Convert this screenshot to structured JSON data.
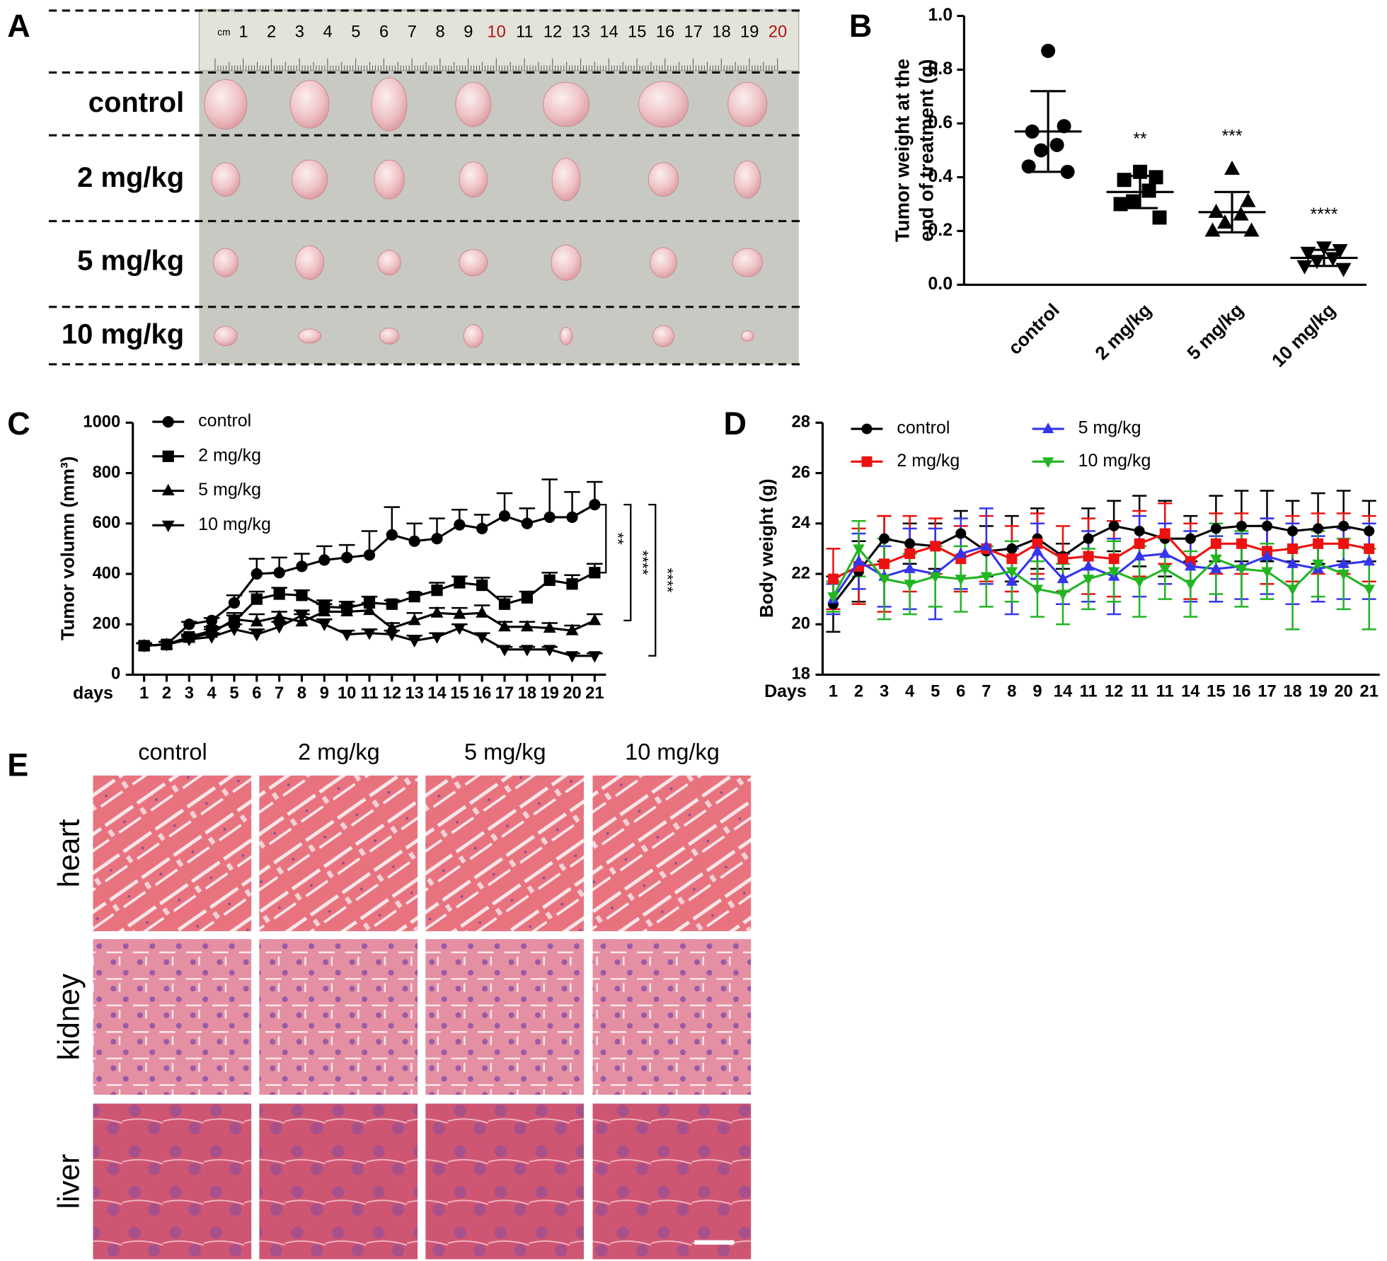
{
  "panel_labels": [
    "A",
    "B",
    "C",
    "D",
    "E"
  ],
  "panel_a": {
    "ruler_unit": "cm",
    "ruler_marks": [
      1,
      2,
      3,
      4,
      5,
      6,
      7,
      8,
      9,
      10,
      11,
      12,
      13,
      14,
      15,
      16,
      17,
      18,
      19,
      20
    ],
    "rows": [
      "control",
      "2 mg/kg",
      "5 mg/kg",
      "10 mg/kg"
    ]
  },
  "chart_data": [
    {
      "type": "dot",
      "ylabel": [
        "Tumor weight at the",
        "end of treatment (g)"
      ],
      "categories": [
        "control",
        "2 mg/kg",
        "5 mg/kg",
        "10 mg/kg"
      ],
      "markers": [
        "circle",
        "square",
        "triangle",
        "triangle-down"
      ],
      "color": "#000000",
      "points": [
        [
          0.87,
          0.59,
          0.57,
          0.52,
          0.5,
          0.44,
          0.42
        ],
        [
          0.42,
          0.4,
          0.39,
          0.35,
          0.31,
          0.3,
          0.25
        ],
        [
          0.43,
          0.31,
          0.27,
          0.26,
          0.23,
          0.2,
          0.2
        ],
        [
          0.14,
          0.13,
          0.12,
          0.1,
          0.09,
          0.07,
          0.06
        ]
      ],
      "mean": [
        0.57,
        0.345,
        0.27,
        0.1
      ],
      "sd": [
        0.15,
        0.06,
        0.075,
        0.03
      ],
      "annotations": [
        null,
        "**",
        "***",
        "****"
      ],
      "ylim": [
        0,
        1
      ],
      "yticks": [
        {
          "value": 0,
          "label": "0.0"
        },
        0.2,
        0.4,
        0.6,
        0.8,
        {
          "value": 1,
          "label": "1.0"
        }
      ]
    },
    {
      "type": "line",
      "xlabel": "days",
      "ylabel": "Tumor volumn (mm³)",
      "error_direction": "up",
      "legend": "upper left",
      "x": [
        1,
        2,
        3,
        4,
        5,
        6,
        7,
        8,
        9,
        10,
        11,
        12,
        13,
        14,
        15,
        16,
        17,
        18,
        19,
        20,
        21
      ],
      "xlim": [
        0.5,
        21.5
      ],
      "xticks": [
        1,
        2,
        3,
        4,
        5,
        6,
        7,
        8,
        9,
        10,
        11,
        12,
        13,
        14,
        15,
        16,
        17,
        18,
        19,
        20,
        21
      ],
      "ylim": [
        0,
        1000
      ],
      "yticks": [
        0,
        200,
        400,
        600,
        800,
        1000
      ],
      "series": [
        {
          "name": "control",
          "color": "#000000",
          "marker": "circle",
          "values": [
            115,
            120,
            200,
            215,
            285,
            400,
            405,
            430,
            455,
            465,
            475,
            555,
            530,
            540,
            595,
            580,
            630,
            600,
            625,
            625,
            675
          ],
          "errors": [
            10,
            10,
            10,
            10,
            30,
            60,
            60,
            50,
            55,
            50,
            95,
            110,
            70,
            80,
            60,
            55,
            90,
            60,
            150,
            100,
            90
          ]
        },
        {
          "name": "2 mg/kg",
          "color": "#000000",
          "marker": "square",
          "values": [
            115,
            120,
            150,
            175,
            210,
            300,
            320,
            315,
            270,
            265,
            285,
            280,
            310,
            335,
            365,
            355,
            280,
            305,
            375,
            360,
            405
          ],
          "errors": [
            10,
            10,
            10,
            15,
            25,
            30,
            25,
            20,
            25,
            25,
            25,
            15,
            15,
            30,
            25,
            30,
            30,
            25,
            30,
            35,
            35
          ]
        },
        {
          "name": "5 mg/kg",
          "color": "#000000",
          "marker": "triangle",
          "values": [
            115,
            120,
            145,
            165,
            220,
            210,
            230,
            210,
            250,
            250,
            255,
            185,
            215,
            245,
            240,
            245,
            190,
            190,
            185,
            175,
            215
          ],
          "errors": [
            10,
            10,
            10,
            15,
            25,
            30,
            20,
            30,
            30,
            25,
            30,
            20,
            30,
            20,
            25,
            30,
            20,
            20,
            20,
            20,
            25
          ]
        },
        {
          "name": "10 mg/kg",
          "color": "#000000",
          "marker": "triangle-down",
          "values": [
            115,
            120,
            140,
            150,
            180,
            160,
            190,
            235,
            200,
            160,
            165,
            160,
            135,
            150,
            185,
            150,
            100,
            100,
            100,
            75,
            75
          ],
          "errors": [
            10,
            10,
            10,
            15,
            20,
            20,
            20,
            20,
            20,
            15,
            15,
            15,
            20,
            15,
            15,
            15,
            10,
            10,
            10,
            10,
            10
          ]
        }
      ],
      "significance": [
        "**",
        "****",
        "****"
      ]
    },
    {
      "type": "line",
      "xlabel": "Days",
      "ylabel": "Body weight (g)",
      "error_direction": "both",
      "legend": "top",
      "categories": [
        "1",
        "2",
        "3",
        "4",
        "5",
        "6",
        "7",
        "8",
        "9",
        "14",
        "11",
        "12",
        "11",
        "11",
        "14",
        "15",
        "16",
        "17",
        "18",
        "19",
        "20",
        "21"
      ],
      "ylim": [
        18,
        28
      ],
      "yticks": [
        18,
        20,
        22,
        24,
        26,
        28
      ],
      "series": [
        {
          "name": "control",
          "color": "#000000",
          "marker": "circle",
          "values": [
            20.8,
            22.1,
            23.4,
            23.2,
            23.1,
            23.6,
            22.9,
            23.0,
            23.4,
            22.7,
            23.4,
            23.9,
            23.7,
            23.4,
            23.4,
            23.8,
            23.9,
            23.9,
            23.7,
            23.8,
            23.9,
            23.7
          ],
          "errors": [
            1.1,
            1.2,
            0.9,
            0.8,
            0.9,
            0.9,
            1.0,
            1.3,
            1.2,
            0.5,
            1.2,
            1.0,
            1.4,
            1.5,
            0.9,
            1.3,
            1.4,
            1.4,
            1.2,
            1.4,
            1.4,
            1.2
          ]
        },
        {
          "name": "2 mg/kg",
          "color": "#ee1111",
          "marker": "square",
          "values": [
            21.8,
            22.3,
            22.4,
            22.8,
            23.1,
            22.6,
            23.0,
            22.6,
            23.2,
            22.6,
            22.7,
            22.6,
            23.2,
            23.6,
            22.5,
            23.2,
            23.2,
            22.9,
            23.0,
            23.2,
            23.2,
            23.0
          ],
          "errors": [
            1.2,
            1.5,
            1.9,
            1.5,
            1.1,
            1.3,
            1.3,
            1.3,
            1.2,
            1.3,
            1.5,
            1.5,
            1.3,
            1.2,
            1.5,
            1.2,
            1.2,
            1.3,
            1.3,
            1.2,
            1.2,
            1.3
          ]
        },
        {
          "name": "5 mg/kg",
          "color": "#3535ee",
          "marker": "triangle",
          "values": [
            21.0,
            22.5,
            21.9,
            22.2,
            22.0,
            22.8,
            23.1,
            21.7,
            22.9,
            21.8,
            22.3,
            21.9,
            22.7,
            22.8,
            22.3,
            22.2,
            22.3,
            22.7,
            22.4,
            22.2,
            22.4,
            22.5
          ],
          "errors": [
            0.6,
            1.1,
            1.2,
            1.6,
            1.8,
            1.4,
            1.5,
            1.3,
            1.1,
            1.0,
            1.4,
            1.5,
            1.6,
            1.2,
            1.4,
            1.3,
            1.3,
            1.5,
            1.6,
            1.3,
            1.4,
            1.5
          ]
        },
        {
          "name": "10 mg/kg",
          "color": "#22b522",
          "marker": "triangle-down",
          "values": [
            21.1,
            23.0,
            21.8,
            21.6,
            21.9,
            21.8,
            21.9,
            22.1,
            21.4,
            21.2,
            21.8,
            22.1,
            21.7,
            22.2,
            21.6,
            22.6,
            22.2,
            22.1,
            21.4,
            22.4,
            22.0,
            21.4
          ],
          "errors": [
            0.6,
            1.1,
            1.6,
            1.2,
            1.2,
            1.3,
            1.2,
            1.2,
            1.1,
            1.2,
            1.2,
            1.2,
            1.4,
            1.2,
            1.3,
            1.4,
            1.5,
            1.1,
            1.6,
            1.3,
            1.4,
            1.6
          ]
        }
      ]
    }
  ],
  "panel_e": {
    "columns": [
      "control",
      "2 mg/kg",
      "5 mg/kg",
      "10 mg/kg"
    ],
    "rows": [
      "heart",
      "kidney",
      "liver"
    ]
  }
}
